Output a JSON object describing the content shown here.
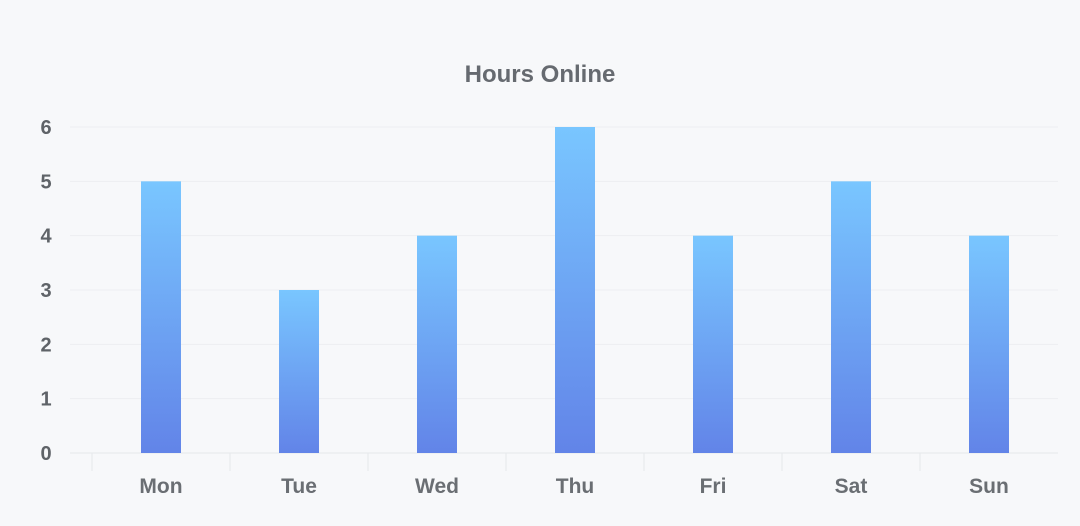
{
  "chart_data": {
    "type": "bar",
    "title": "Hours Online",
    "xlabel": "",
    "ylabel": "",
    "categories": [
      "Mon",
      "Tue",
      "Wed",
      "Thu",
      "Fri",
      "Sat",
      "Sun"
    ],
    "values": [
      5,
      3,
      4,
      6,
      4,
      5,
      4
    ],
    "ylim": [
      0,
      6
    ],
    "yticks": [
      0,
      1,
      2,
      3,
      4,
      5,
      6
    ],
    "grid": true,
    "legend": "none",
    "colors": {
      "bar_top": "#79c6ff",
      "bar_bottom": "#6284e8"
    }
  }
}
